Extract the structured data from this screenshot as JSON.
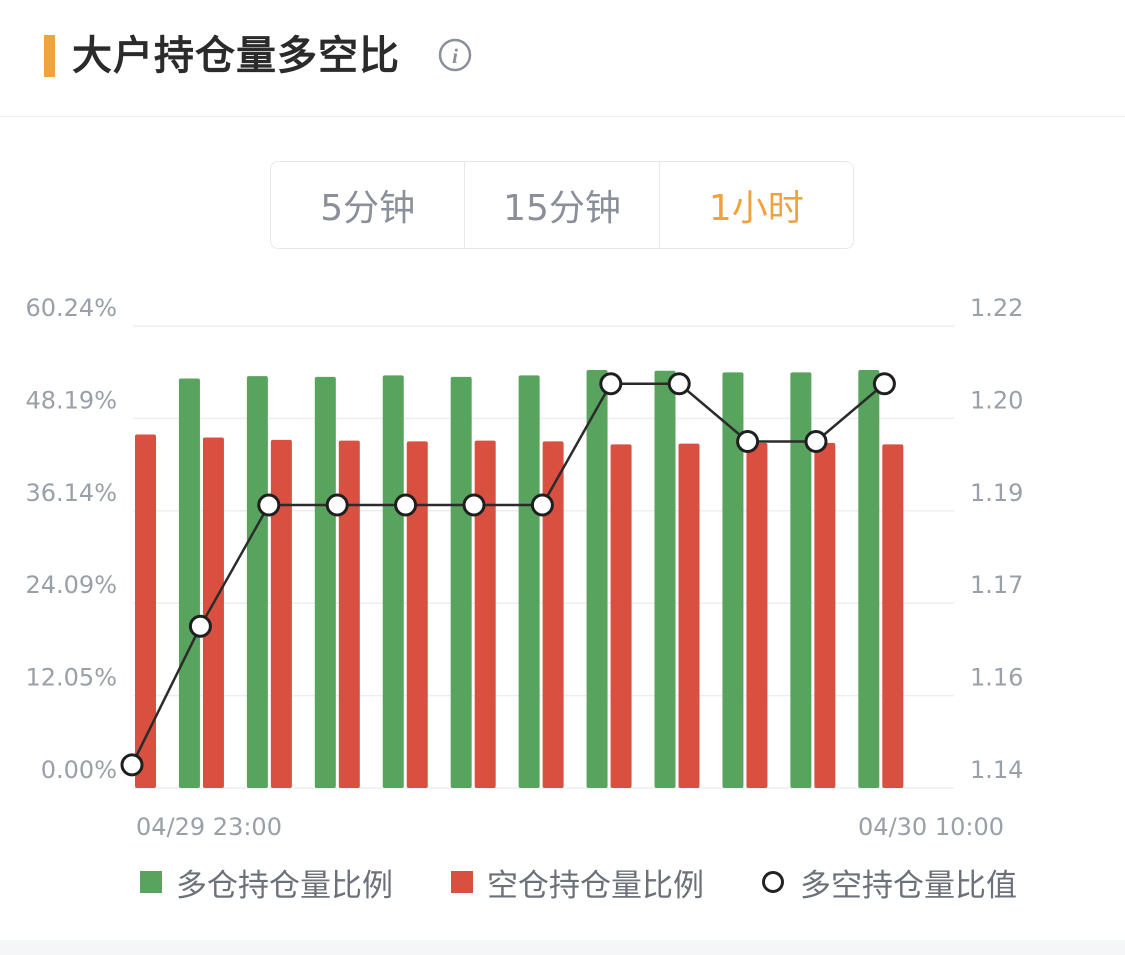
{
  "header": {
    "title": "大户持仓量多空比",
    "info_icon": "info-icon"
  },
  "tabs": [
    {
      "label": "5分钟",
      "active": false
    },
    {
      "label": "15分钟",
      "active": false
    },
    {
      "label": "1小时",
      "active": true
    }
  ],
  "colors": {
    "accent": "#f0a23b",
    "long": "#58a35d",
    "short": "#d94f40",
    "ratio_line": "#2b2b2b",
    "grid": "#eceef2",
    "axis_text": "#9aa0a8"
  },
  "chart_data": {
    "type": "bar",
    "x_start_label": "04/29 23:00",
    "x_end_label": "04/30 10:00",
    "y_left_ticks": [
      "0.00%",
      "12.05%",
      "24.09%",
      "36.14%",
      "48.19%",
      "60.24%"
    ],
    "y_right_ticks": [
      "1.14",
      "1.16",
      "1.17",
      "1.19",
      "1.20",
      "1.22"
    ],
    "ylim_left": [
      0,
      60.24
    ],
    "ylim_right": [
      1.14,
      1.22
    ],
    "grid": true,
    "legend_position": "bottom",
    "series": [
      {
        "name": "多仓持仓量比例",
        "kind": "bar",
        "axis": "left",
        "values": [
          null,
          53.4,
          53.7,
          53.6,
          53.8,
          53.6,
          53.8,
          54.5,
          54.4,
          54.2,
          54.2,
          54.5
        ]
      },
      {
        "name": "空仓持仓量比例",
        "kind": "bar",
        "axis": "left",
        "values": [
          46.1,
          45.7,
          45.4,
          45.3,
          45.2,
          45.3,
          45.2,
          44.8,
          44.9,
          45.0,
          45.0,
          44.8
        ]
      },
      {
        "name": "多空持仓量比值",
        "kind": "line",
        "axis": "right",
        "values": [
          1.144,
          1.168,
          1.189,
          1.189,
          1.189,
          1.189,
          1.189,
          1.21,
          1.21,
          1.2,
          1.2,
          1.21
        ]
      }
    ]
  }
}
